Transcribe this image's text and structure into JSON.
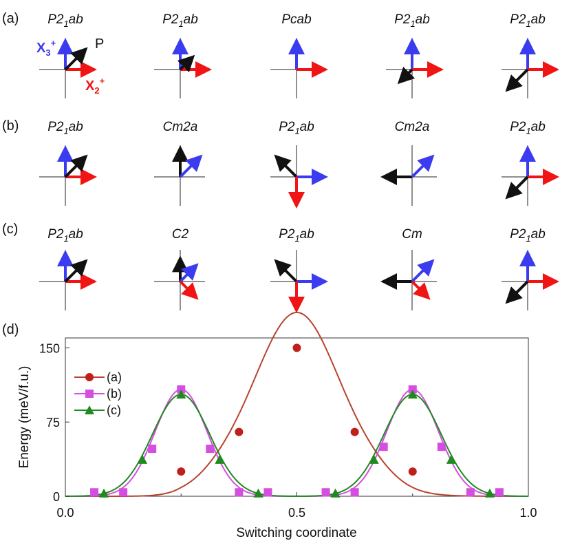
{
  "panels": [
    {
      "label": "(a)",
      "groups": [
        {
          "name": "P2",
          "sub": "1",
          "rest": "ab",
          "arrows": [
            {
              "dir": 90,
              "len": 1.0,
              "color": "blue"
            },
            {
              "dir": 0,
              "len": 1.0,
              "color": "red"
            },
            {
              "dir": 45,
              "len": 1.0,
              "color": "black"
            }
          ]
        },
        {
          "name": "P2",
          "sub": "1",
          "rest": "ab",
          "arrows": [
            {
              "dir": 90,
              "len": 1.0,
              "color": "blue"
            },
            {
              "dir": 0,
              "len": 1.0,
              "color": "red"
            },
            {
              "dir": 45,
              "len": 0.62,
              "color": "black"
            }
          ]
        },
        {
          "name": "Pcab",
          "sub": "",
          "rest": "",
          "arrows": [
            {
              "dir": 90,
              "len": 1.0,
              "color": "blue"
            },
            {
              "dir": 0,
              "len": 1.0,
              "color": "red"
            }
          ]
        },
        {
          "name": "P2",
          "sub": "1",
          "rest": "ab",
          "arrows": [
            {
              "dir": 90,
              "len": 1.0,
              "color": "blue"
            },
            {
              "dir": 0,
              "len": 1.0,
              "color": "red"
            },
            {
              "dir": 225,
              "len": 0.62,
              "color": "black"
            }
          ]
        },
        {
          "name": "P2",
          "sub": "1",
          "rest": "ab",
          "arrows": [
            {
              "dir": 90,
              "len": 1.0,
              "color": "blue"
            },
            {
              "dir": 0,
              "len": 1.0,
              "color": "red"
            },
            {
              "dir": 225,
              "len": 1.0,
              "color": "black"
            }
          ]
        }
      ]
    },
    {
      "label": "(b)",
      "groups": [
        {
          "name": "P2",
          "sub": "1",
          "rest": "ab",
          "arrows": [
            {
              "dir": 90,
              "len": 1.0,
              "color": "blue"
            },
            {
              "dir": 0,
              "len": 1.0,
              "color": "red"
            },
            {
              "dir": 45,
              "len": 1.0,
              "color": "black"
            }
          ]
        },
        {
          "name": "Cm2a",
          "sub": "",
          "rest": "",
          "arrows": [
            {
              "dir": 90,
              "len": 1.0,
              "color": "black"
            },
            {
              "dir": 45,
              "len": 1.0,
              "color": "blue"
            }
          ]
        },
        {
          "name": "P2",
          "sub": "1",
          "rest": "ab",
          "arrows": [
            {
              "dir": 135,
              "len": 1.0,
              "color": "black"
            },
            {
              "dir": 0,
              "len": 1.0,
              "color": "blue"
            },
            {
              "dir": 270,
              "len": 1.0,
              "color": "red"
            }
          ]
        },
        {
          "name": "Cm2a",
          "sub": "",
          "rest": "",
          "arrows": [
            {
              "dir": 180,
              "len": 1.0,
              "color": "black"
            },
            {
              "dir": 45,
              "len": 1.0,
              "color": "blue"
            }
          ]
        },
        {
          "name": "P2",
          "sub": "1",
          "rest": "ab",
          "arrows": [
            {
              "dir": 90,
              "len": 1.0,
              "color": "blue"
            },
            {
              "dir": 0,
              "len": 1.0,
              "color": "red"
            },
            {
              "dir": 225,
              "len": 1.0,
              "color": "black"
            }
          ]
        }
      ]
    },
    {
      "label": "(c)",
      "groups": [
        {
          "name": "P2",
          "sub": "1",
          "rest": "ab",
          "arrows": [
            {
              "dir": 90,
              "len": 1.0,
              "color": "blue"
            },
            {
              "dir": 0,
              "len": 1.0,
              "color": "red"
            },
            {
              "dir": 45,
              "len": 1.0,
              "color": "black"
            }
          ]
        },
        {
          "name": "C2",
          "sub": "",
          "rest": "",
          "arrows": [
            {
              "dir": 90,
              "len": 0.8,
              "color": "black"
            },
            {
              "dir": 45,
              "len": 0.8,
              "color": "blue"
            },
            {
              "dir": 315,
              "len": 0.8,
              "color": "red"
            }
          ]
        },
        {
          "name": "P2",
          "sub": "1",
          "rest": "ab",
          "arrows": [
            {
              "dir": 135,
              "len": 1.0,
              "color": "black"
            },
            {
              "dir": 0,
              "len": 1.0,
              "color": "blue"
            },
            {
              "dir": 270,
              "len": 1.0,
              "color": "red"
            }
          ]
        },
        {
          "name": "Cm",
          "sub": "",
          "rest": "",
          "arrows": [
            {
              "dir": 180,
              "len": 1.0,
              "color": "black"
            },
            {
              "dir": 45,
              "len": 1.0,
              "color": "blue"
            },
            {
              "dir": 315,
              "len": 0.8,
              "color": "red"
            }
          ]
        },
        {
          "name": "P2",
          "sub": "1",
          "rest": "ab",
          "arrows": [
            {
              "dir": 90,
              "len": 1.0,
              "color": "blue"
            },
            {
              "dir": 0,
              "len": 1.0,
              "color": "red"
            },
            {
              "dir": 225,
              "len": 1.0,
              "color": "black"
            }
          ]
        }
      ]
    }
  ],
  "annotations": {
    "x3_base": "X",
    "x3_sub": "3",
    "x3_sup": "+",
    "x2_base": "X",
    "x2_sub": "2",
    "x2_sup": "+",
    "p_label": "P"
  },
  "colors": {
    "blue": "#3b3bf0",
    "red": "#f01414",
    "black": "#111111",
    "series_a": "#b8432f",
    "series_a_marker": "#c0201a",
    "series_b": "#d44fe0",
    "series_c": "#1f8a1f"
  },
  "chart_data": {
    "panel_label": "(d)",
    "type": "line",
    "title": "",
    "xlabel": "Switching coordinate",
    "ylabel": "Energy (meV/f.u.)",
    "xlim": [
      0.0,
      1.0
    ],
    "ylim": [
      0,
      160
    ],
    "xticks": [
      0.0,
      0.5,
      1.0
    ],
    "xtick_labels": [
      "0.0",
      "0.5",
      "1.0"
    ],
    "yticks": [
      0,
      75,
      150
    ],
    "ytick_labels": [
      "0",
      "75",
      "150"
    ],
    "series": [
      {
        "name": "(a)",
        "marker": "circle",
        "color_key": "series_a",
        "x": [
          0.25,
          0.375,
          0.5,
          0.625,
          0.75
        ],
        "y": [
          25,
          65,
          150,
          65,
          25
        ],
        "curve": "a"
      },
      {
        "name": "(b)",
        "marker": "square",
        "color_key": "series_b",
        "x": [
          0.0625,
          0.125,
          0.1875,
          0.25,
          0.3125,
          0.375,
          0.4375,
          0.5625,
          0.625,
          0.6875,
          0.75,
          0.8125,
          0.875,
          0.9375
        ],
        "y": [
          4,
          4,
          48,
          108,
          48,
          4,
          4,
          4,
          4,
          50,
          108,
          50,
          4,
          4
        ],
        "curve": "b"
      },
      {
        "name": "(c)",
        "marker": "triangle",
        "color_key": "series_c",
        "x": [
          0.0833,
          0.1667,
          0.25,
          0.3333,
          0.4167,
          0.5833,
          0.6667,
          0.75,
          0.8333,
          0.9167
        ],
        "y": [
          3,
          37,
          103,
          37,
          3,
          3,
          37,
          103,
          37,
          3
        ],
        "curve": "c"
      }
    ]
  }
}
